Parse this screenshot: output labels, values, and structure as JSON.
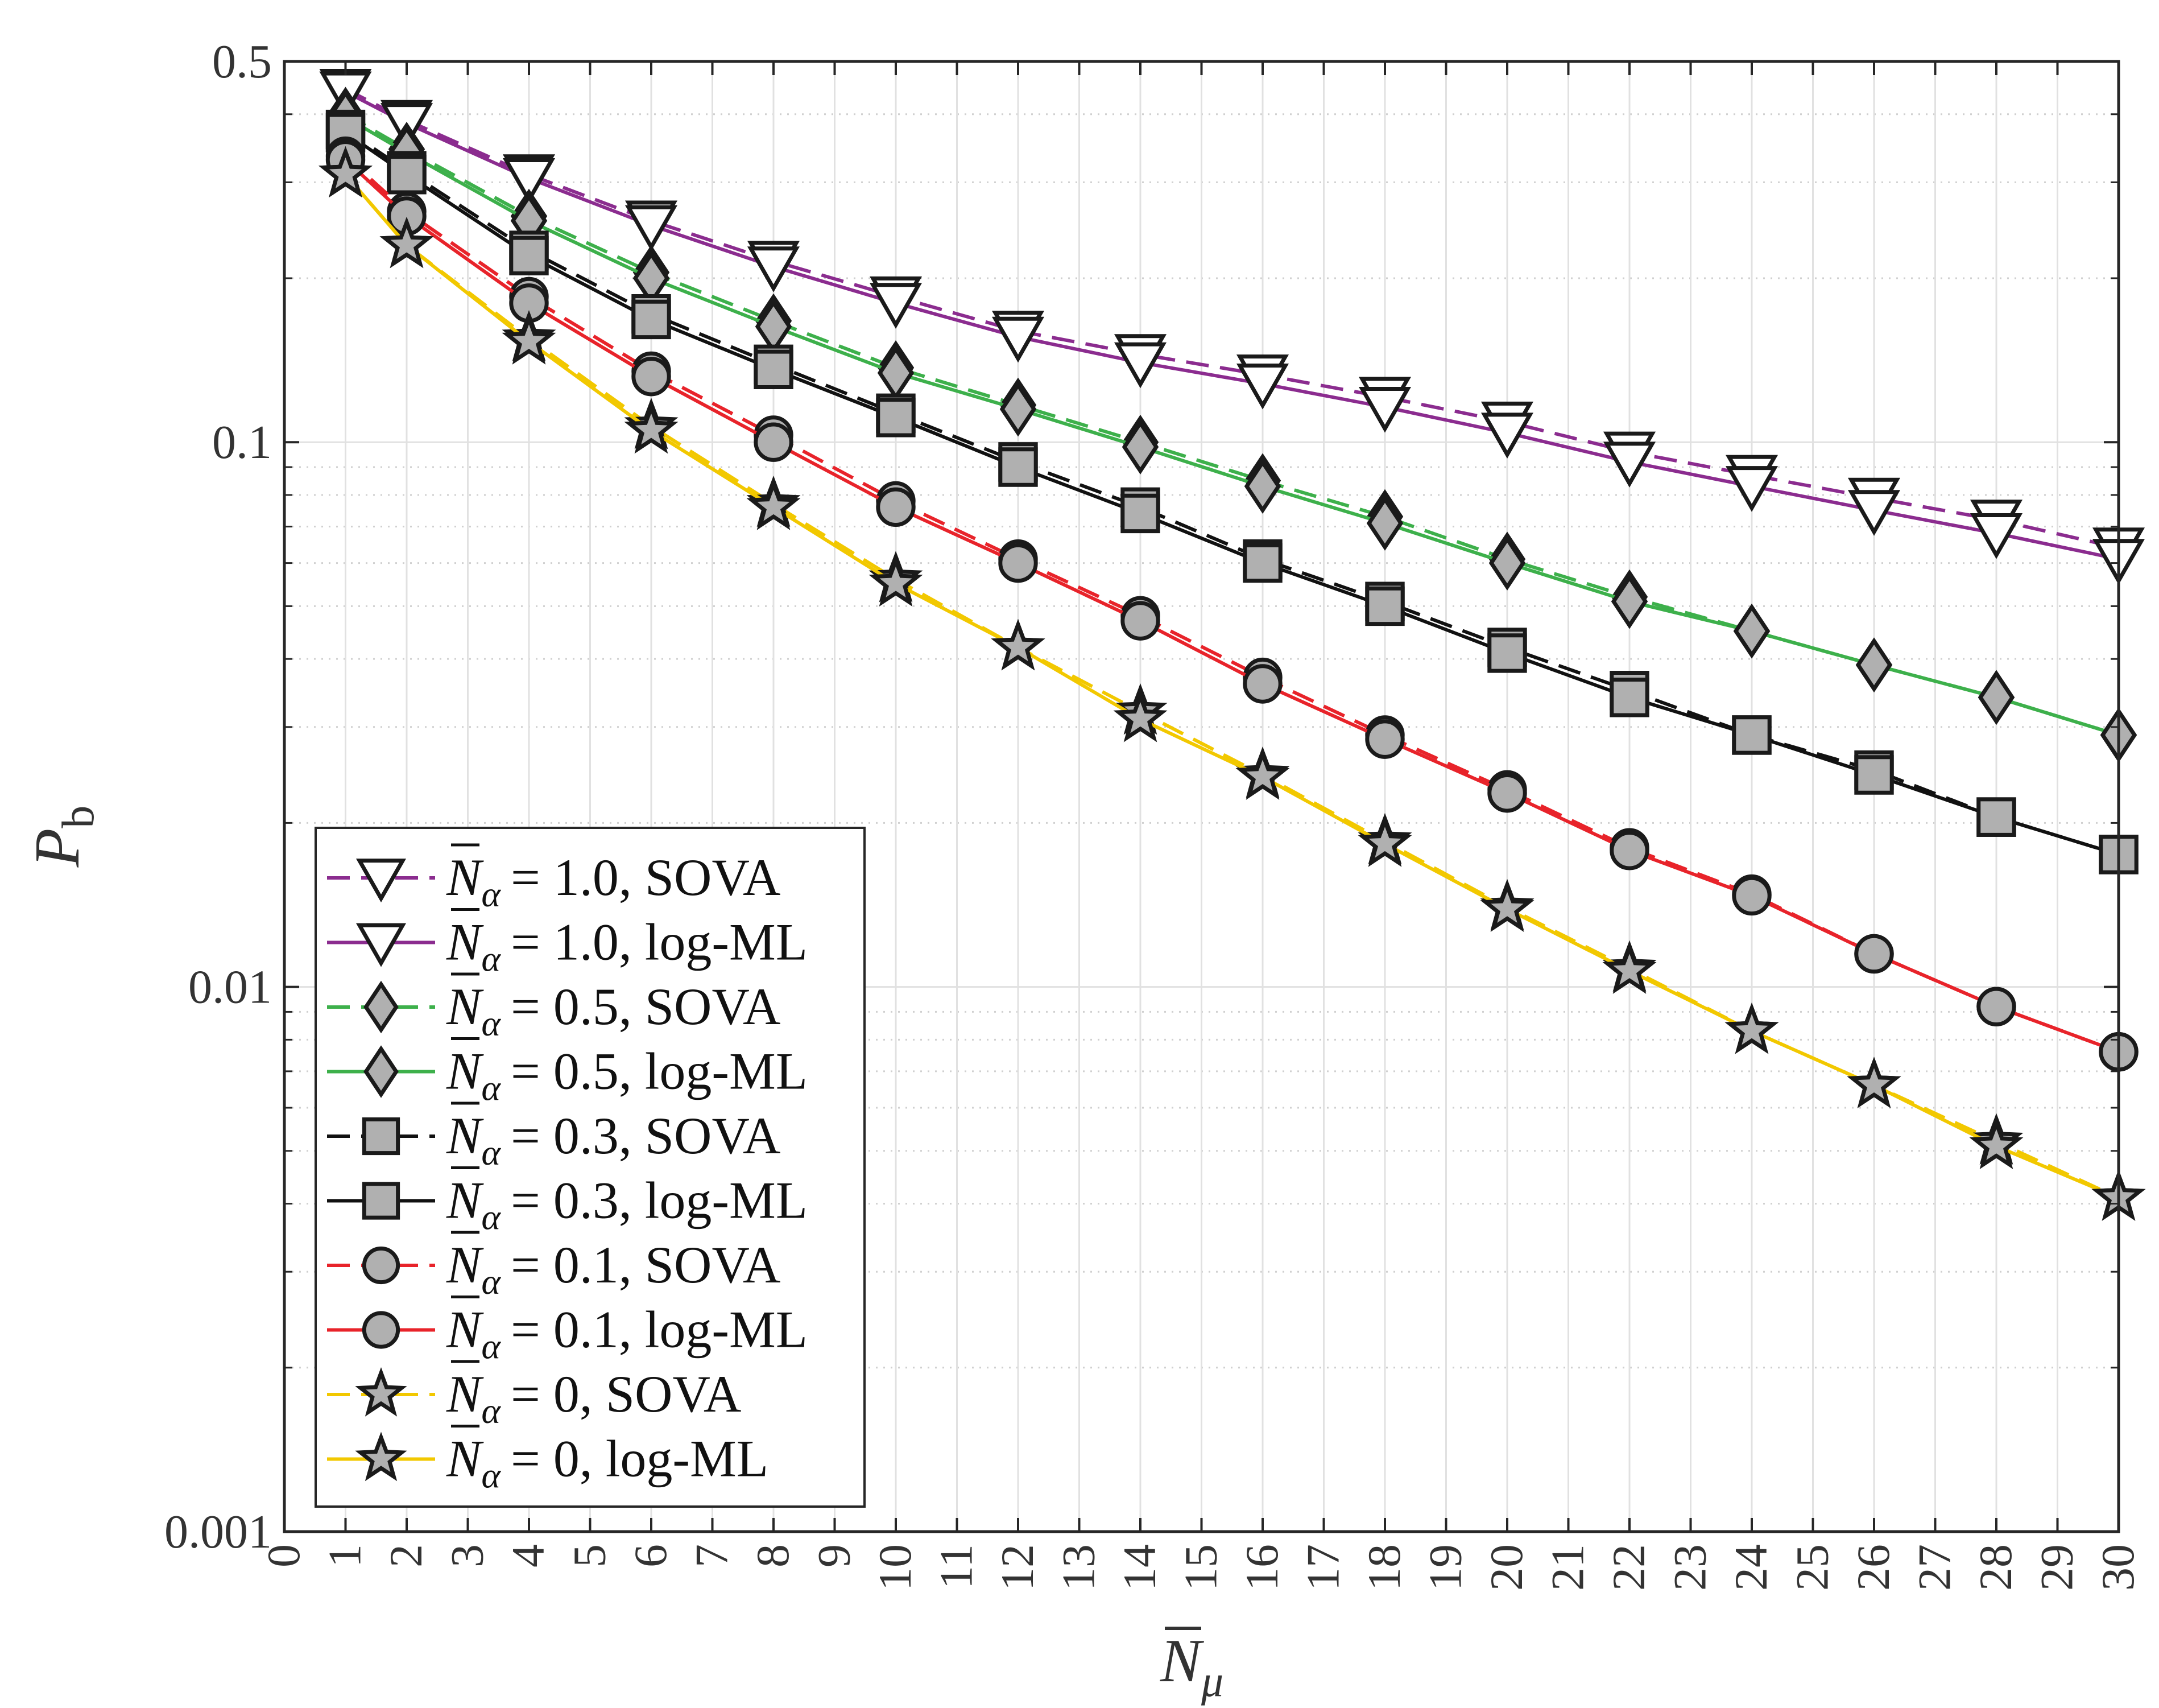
{
  "chart_data": {
    "type": "line",
    "title": "",
    "xlabel": {
      "base": "N",
      "bar": true,
      "sub": "μ"
    },
    "ylabel": {
      "base": "P",
      "sub": "b"
    },
    "xlim": [
      0,
      30
    ],
    "ylim": [
      0.001,
      0.5
    ],
    "yscale": "log",
    "grid": true,
    "legend_position": "bottom-left",
    "x_ticks": [
      "0",
      "1",
      "2",
      "3",
      "4",
      "5",
      "6",
      "7",
      "8",
      "9",
      "10",
      "11",
      "12",
      "13",
      "14",
      "15",
      "16",
      "17",
      "18",
      "19",
      "20",
      "21",
      "22",
      "23",
      "24",
      "25",
      "26",
      "27",
      "28",
      "29",
      "30"
    ],
    "y_ticks": [
      {
        "value": 0.5,
        "label": "0.5"
      },
      {
        "value": 0.1,
        "label": "0.1"
      },
      {
        "value": 0.01,
        "label": "0.01"
      },
      {
        "value": 0.001,
        "label": "0.001"
      }
    ],
    "x": [
      1,
      2,
      4,
      6,
      8,
      10,
      12,
      14,
      16,
      18,
      20,
      22,
      24,
      26,
      28,
      30
    ],
    "series": [
      {
        "name": "N̄α = 1.0, SOVA",
        "label_base": "= 1.0, SOVA",
        "color": "#8B2C8F",
        "dash": true,
        "marker": "triangle-down",
        "marker_fill": "#ffffff",
        "values": [
          0.445,
          0.39,
          0.31,
          0.255,
          0.215,
          0.185,
          0.16,
          0.145,
          0.133,
          0.121,
          0.109,
          0.096,
          0.087,
          0.079,
          0.072,
          0.064
        ]
      },
      {
        "name": "N̄α = 1.0, log-ML",
        "label_base": "= 1.0, log-ML",
        "color": "#8B2C8F",
        "dash": false,
        "marker": "triangle-down",
        "marker_fill": "#ffffff",
        "values": [
          0.44,
          0.385,
          0.305,
          0.25,
          0.21,
          0.18,
          0.156,
          0.14,
          0.128,
          0.116,
          0.104,
          0.092,
          0.083,
          0.075,
          0.068,
          0.061
        ]
      },
      {
        "name": "N̄α = 0.5, SOVA",
        "label_base": "= 0.5, SOVA",
        "color": "#3DB04B",
        "dash": true,
        "marker": "diamond",
        "marker_fill": "#b0b0b0",
        "values": [
          0.4,
          0.345,
          0.26,
          0.205,
          0.167,
          0.137,
          0.117,
          0.1,
          0.085,
          0.073,
          0.061,
          0.052,
          0.045,
          0.039,
          0.034,
          0.029
        ]
      },
      {
        "name": "N̄α = 0.5, log-ML",
        "label_base": "= 0.5, log-ML",
        "color": "#3DB04B",
        "dash": false,
        "marker": "diamond",
        "marker_fill": "#b0b0b0",
        "values": [
          0.395,
          0.34,
          0.255,
          0.2,
          0.163,
          0.134,
          0.115,
          0.098,
          0.083,
          0.071,
          0.06,
          0.051,
          0.045,
          0.039,
          0.034,
          0.029
        ]
      },
      {
        "name": "N̄α = 0.3, SOVA",
        "label_base": "= 0.3, SOVA",
        "color": "#111111",
        "dash": true,
        "marker": "square",
        "marker_fill": "#b0b0b0",
        "values": [
          0.375,
          0.315,
          0.225,
          0.172,
          0.139,
          0.113,
          0.092,
          0.076,
          0.061,
          0.051,
          0.042,
          0.035,
          0.029,
          0.025,
          0.0205,
          0.0175
        ]
      },
      {
        "name": "N̄α = 0.3, log-ML",
        "label_base": "= 0.3, log-ML",
        "color": "#111111",
        "dash": false,
        "marker": "square",
        "marker_fill": "#b0b0b0",
        "values": [
          0.37,
          0.31,
          0.22,
          0.168,
          0.136,
          0.111,
          0.09,
          0.074,
          0.06,
          0.05,
          0.041,
          0.034,
          0.029,
          0.0245,
          0.0205,
          0.0175
        ]
      },
      {
        "name": "N̄α = 0.1, SOVA",
        "label_base": "= 0.1, SOVA",
        "color": "#E8232A",
        "dash": true,
        "marker": "circle",
        "marker_fill": "#b0b0b0",
        "values": [
          0.335,
          0.265,
          0.185,
          0.135,
          0.103,
          0.078,
          0.061,
          0.048,
          0.037,
          0.029,
          0.023,
          0.018,
          0.0148,
          0.0115,
          0.0092,
          0.0076
        ]
      },
      {
        "name": "N̄α = 0.1, log-ML",
        "label_base": "= 0.1, log-ML",
        "color": "#E8232A",
        "dash": false,
        "marker": "circle",
        "marker_fill": "#b0b0b0",
        "values": [
          0.33,
          0.26,
          0.18,
          0.132,
          0.1,
          0.076,
          0.06,
          0.047,
          0.036,
          0.0285,
          0.0227,
          0.0178,
          0.0147,
          0.0115,
          0.0092,
          0.0076
        ]
      },
      {
        "name": "N̄α = 0, SOVA",
        "label_base": "= 0, SOVA",
        "color": "#F2C800",
        "dash": true,
        "marker": "star",
        "marker_fill": "#b0b0b0",
        "values": [
          0.31,
          0.23,
          0.155,
          0.107,
          0.077,
          0.056,
          0.042,
          0.032,
          0.0245,
          0.0185,
          0.014,
          0.0108,
          0.0083,
          0.0066,
          0.0052,
          0.0041
        ]
      },
      {
        "name": "N̄α = 0, log-ML",
        "label_base": "= 0, log-ML",
        "color": "#F2C800",
        "dash": false,
        "marker": "star",
        "marker_fill": "#b0b0b0",
        "values": [
          0.31,
          0.23,
          0.153,
          0.105,
          0.076,
          0.055,
          0.042,
          0.031,
          0.0243,
          0.0183,
          0.0139,
          0.0107,
          0.0083,
          0.0066,
          0.0051,
          0.0041
        ]
      }
    ]
  }
}
